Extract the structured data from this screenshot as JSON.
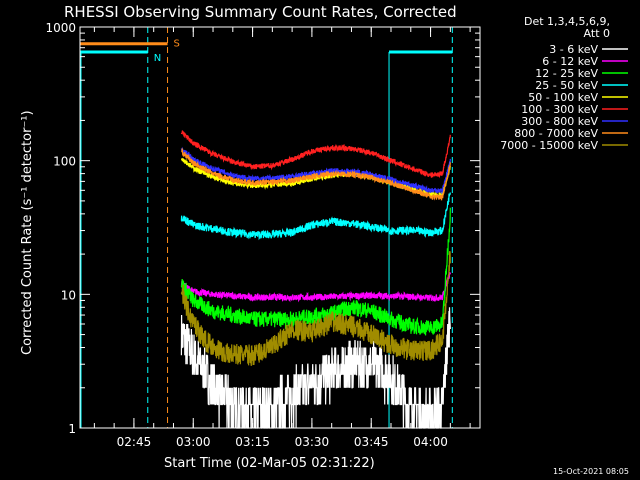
{
  "chart_data": {
    "type": "line",
    "title": "RHESSI Observing Summary Count Rates, Corrected",
    "xlabel": "Start Time (02-Mar-05 02:31:22)",
    "ylabel": "Corrected Count Rate (s⁻¹ detector⁻¹)",
    "y_scale": "log",
    "ylim": [
      1,
      1000
    ],
    "xlim": [
      "02:31:22",
      "04:12:30"
    ],
    "grid": false,
    "legend_position": "top-right",
    "legend_header": [
      "Det 1,3,4,5,6,9,",
      "Att 0"
    ],
    "x_ticks": [
      "02:45",
      "03:00",
      "03:15",
      "03:30",
      "03:45",
      "04:00"
    ],
    "y_ticks": [
      "1",
      "10",
      "100",
      "1000"
    ],
    "series": [
      {
        "name": "3 - 6 keV",
        "color": "#ffffff",
        "x": [
          "02:57",
          "03:00",
          "03:05",
          "03:10",
          "03:15",
          "03:20",
          "03:25",
          "03:30",
          "03:35",
          "03:40",
          "03:45",
          "03:50",
          "03:55",
          "04:00",
          "04:03",
          "04:05"
        ],
        "y": [
          5,
          3.5,
          2,
          1.5,
          1.3,
          1.4,
          1.8,
          2.2,
          2.6,
          3,
          3,
          2.4,
          1.4,
          1.2,
          1.4,
          8
        ]
      },
      {
        "name": "6 - 12 keV",
        "color": "#ff00ff",
        "x": [
          "02:57",
          "03:00",
          "03:05",
          "03:15",
          "03:30",
          "03:45",
          "03:55",
          "04:00",
          "04:03",
          "04:05"
        ],
        "y": [
          12,
          10.5,
          10,
          9.5,
          9.5,
          9.8,
          9.6,
          9.4,
          9.5,
          15
        ]
      },
      {
        "name": "12 - 25 keV",
        "color": "#00ff00",
        "x": [
          "02:57",
          "03:00",
          "03:05",
          "03:15",
          "03:25",
          "03:35",
          "03:40",
          "03:45",
          "03:50",
          "03:55",
          "04:00",
          "04:03",
          "04:05"
        ],
        "y": [
          12,
          9,
          7.5,
          6.5,
          6.5,
          7.2,
          8,
          7.5,
          6.5,
          5.8,
          5.6,
          6,
          40
        ]
      },
      {
        "name": "25 - 50 keV",
        "color": "#00ffff",
        "x": [
          "02:57",
          "03:00",
          "03:05",
          "03:10",
          "03:15",
          "03:20",
          "03:25",
          "03:30",
          "03:35",
          "03:40",
          "03:45",
          "03:50",
          "03:55",
          "04:00",
          "04:03",
          "04:05"
        ],
        "y": [
          38,
          33,
          31,
          29,
          28,
          28,
          29,
          33,
          35,
          34,
          32,
          30,
          30,
          29,
          30,
          60
        ]
      },
      {
        "name": "50 - 100 keV",
        "color": "#ffff00",
        "x": [
          "02:57",
          "03:00",
          "03:05",
          "03:10",
          "03:15",
          "03:20",
          "03:25",
          "03:30",
          "03:35",
          "03:40",
          "03:45",
          "03:50",
          "03:55",
          "04:00",
          "04:03",
          "04:05"
        ],
        "y": [
          105,
          88,
          75,
          68,
          65,
          66,
          68,
          73,
          78,
          80,
          76,
          68,
          62,
          56,
          55,
          90
        ]
      },
      {
        "name": "100 - 300 keV",
        "color": "#ff2020",
        "x": [
          "02:57",
          "03:00",
          "03:05",
          "03:10",
          "03:15",
          "03:20",
          "03:25",
          "03:30",
          "03:35",
          "03:40",
          "03:45",
          "03:50",
          "03:55",
          "04:00",
          "04:03",
          "04:05"
        ],
        "y": [
          165,
          135,
          112,
          98,
          90,
          92,
          102,
          118,
          125,
          123,
          115,
          100,
          88,
          78,
          80,
          150
        ]
      },
      {
        "name": "300 - 800 keV",
        "color": "#3030ff",
        "x": [
          "02:57",
          "03:00",
          "03:05",
          "03:10",
          "03:15",
          "03:20",
          "03:25",
          "03:30",
          "03:35",
          "03:40",
          "03:45",
          "03:50",
          "03:55",
          "04:00",
          "04:03",
          "04:05"
        ],
        "y": [
          122,
          102,
          87,
          78,
          73,
          74,
          76,
          80,
          84,
          83,
          79,
          72,
          66,
          60,
          60,
          100
        ]
      },
      {
        "name": "800 - 7000 keV",
        "color": "#ff8c1a",
        "x": [
          "02:57",
          "03:00",
          "03:05",
          "03:10",
          "03:15",
          "03:20",
          "03:25",
          "03:30",
          "03:35",
          "03:40",
          "03:45",
          "03:50",
          "03:55",
          "04:00",
          "04:03",
          "04:05"
        ],
        "y": [
          118,
          96,
          80,
          72,
          68,
          69,
          71,
          76,
          80,
          79,
          75,
          68,
          61,
          54,
          53,
          95
        ]
      },
      {
        "name": "7000 - 15000 keV",
        "color": "#a08c00",
        "x": [
          "02:57",
          "02:59",
          "03:03",
          "03:08",
          "03:15",
          "03:20",
          "03:25",
          "03:30",
          "03:35",
          "03:40",
          "03:45",
          "03:50",
          "03:55",
          "04:00",
          "04:03",
          "04:05"
        ],
        "y": [
          11,
          7,
          4.5,
          3.6,
          3.5,
          4,
          5.5,
          5.2,
          6.2,
          5.8,
          5,
          4.2,
          3.8,
          3.8,
          4.5,
          20
        ]
      }
    ],
    "annotations": [
      {
        "label": "N",
        "color": "#00ffff"
      },
      {
        "label": "S",
        "color": "#ff8c1a"
      }
    ],
    "flag_bars": [
      {
        "name": "N",
        "color": "#00ffff",
        "y": 650,
        "intervals": [
          [
            "02:31:22",
            "02:48:30"
          ],
          [
            "03:49:30",
            "04:05:30"
          ]
        ],
        "markers": [
          "02:48:30",
          "04:05:30"
        ]
      },
      {
        "name": "S",
        "color": "#ff8c1a",
        "y": 750,
        "intervals": [
          [
            "02:31:22",
            "02:53:30"
          ]
        ],
        "markers": [
          "02:53:30"
        ]
      }
    ],
    "vertical_lines": [
      {
        "x": "02:31:22",
        "color": "#00ffff",
        "style": "solid"
      },
      {
        "x": "03:49:30",
        "color": "#00ffff",
        "style": "solid"
      }
    ],
    "timestamp": "15-Oct-2021 08:05"
  }
}
